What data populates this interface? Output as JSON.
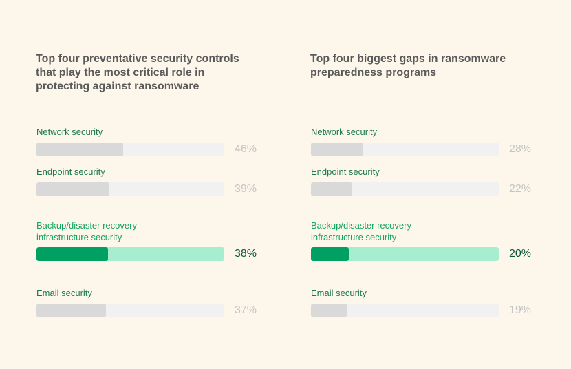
{
  "chart_data": [
    {
      "type": "bar",
      "orientation": "horizontal",
      "title": "Top four preventative security controls that play the most critical role in protecting against ransomware",
      "categories": [
        "Network security",
        "Endpoint security",
        "Backup/disaster recovery infrastructure security",
        "Email security"
      ],
      "values": [
        46,
        39,
        38,
        37
      ],
      "value_labels": [
        "46%",
        "39%",
        "38%",
        "37%"
      ],
      "highlighted": "Backup/disaster recovery infrastructure security",
      "xlim": [
        0,
        100
      ]
    },
    {
      "type": "bar",
      "orientation": "horizontal",
      "title": "Top four biggest gaps in ransomware preparedness programs",
      "categories": [
        "Network security",
        "Endpoint security",
        "Backup/disaster recovery infrastructure security",
        "Email security"
      ],
      "values": [
        28,
        22,
        20,
        19
      ],
      "value_labels": [
        "28%",
        "22%",
        "20%",
        "19%"
      ],
      "highlighted": "Backup/disaster recovery infrastructure security",
      "xlim": [
        0,
        100
      ]
    }
  ],
  "colors": {
    "background": "#fdf6eb",
    "highlight_fill": "#00a062",
    "highlight_track": "#a6eecf",
    "fill": "#d9d9d9",
    "track": "#f1f1f1",
    "label": "#1c7a4c"
  }
}
